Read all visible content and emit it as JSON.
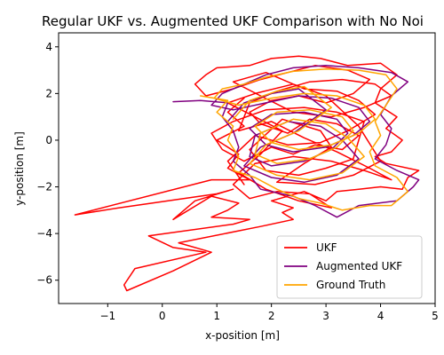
{
  "chart_data": {
    "type": "line",
    "title": "Regular UKF vs. Augmented UKF Comparison with No Noi",
    "xlabel": "x-position [m]",
    "ylabel": "y-position [m]",
    "xlim": [
      -1.9,
      5.0
    ],
    "ylim": [
      -7.0,
      4.6
    ],
    "xticks": [
      -1,
      0,
      1,
      2,
      3,
      4,
      5
    ],
    "yticks": [
      -6,
      -4,
      -2,
      0,
      2,
      4
    ],
    "grid": false,
    "legend_position": "lower-right",
    "series": [
      {
        "name": "UKF",
        "color": "#ff0000",
        "points": [
          [
            1.5,
            1.8
          ],
          [
            1.2,
            1.2
          ],
          [
            1.5,
            0.6
          ],
          [
            1.0,
            0.0
          ],
          [
            1.4,
            -0.6
          ],
          [
            1.2,
            -1.2
          ],
          [
            1.6,
            -1.7
          ],
          [
            0.9,
            -1.7
          ],
          [
            -1.6,
            -3.2
          ],
          [
            -0.8,
            -2.9
          ],
          [
            1.0,
            -2.3
          ],
          [
            1.3,
            -2.1
          ],
          [
            0.6,
            -2.6
          ],
          [
            0.2,
            -3.4
          ],
          [
            0.9,
            -2.4
          ],
          [
            1.4,
            -2.7
          ],
          [
            1.2,
            -3.0
          ],
          [
            0.9,
            -3.3
          ],
          [
            1.6,
            -3.4
          ],
          [
            1.3,
            -3.6
          ],
          [
            -0.25,
            -4.1
          ],
          [
            0.2,
            -4.6
          ],
          [
            0.8,
            -4.8
          ],
          [
            -0.5,
            -5.5
          ],
          [
            -0.7,
            -6.2
          ],
          [
            -0.65,
            -6.45
          ],
          [
            0.2,
            -5.6
          ],
          [
            0.9,
            -4.8
          ],
          [
            0.3,
            -4.4
          ],
          [
            1.8,
            -3.7
          ],
          [
            2.4,
            -3.4
          ],
          [
            2.2,
            -3.1
          ],
          [
            2.4,
            -2.9
          ],
          [
            2.0,
            -2.6
          ],
          [
            2.6,
            -2.2
          ],
          [
            3.0,
            -2.6
          ],
          [
            3.2,
            -2.2
          ],
          [
            3.6,
            -2.1
          ],
          [
            4.0,
            -2.0
          ],
          [
            4.4,
            -2.1
          ],
          [
            4.5,
            -1.6
          ],
          [
            4.7,
            -1.3
          ],
          [
            4.1,
            -1.0
          ],
          [
            3.9,
            -0.7
          ],
          [
            4.2,
            -0.5
          ],
          [
            4.4,
            0.0
          ],
          [
            4.1,
            0.5
          ],
          [
            4.3,
            1.0
          ],
          [
            3.9,
            1.6
          ],
          [
            4.0,
            2.2
          ],
          [
            4.3,
            2.8
          ],
          [
            4.0,
            3.3
          ],
          [
            3.4,
            3.2
          ],
          [
            2.9,
            3.5
          ],
          [
            2.5,
            3.6
          ],
          [
            2.0,
            3.5
          ],
          [
            1.6,
            3.2
          ],
          [
            1.0,
            3.1
          ],
          [
            0.8,
            2.8
          ],
          [
            0.6,
            2.4
          ],
          [
            0.8,
            1.9
          ],
          [
            1.3,
            2.2
          ],
          [
            1.8,
            2.6
          ],
          [
            2.3,
            2.9
          ],
          [
            2.8,
            3.2
          ],
          [
            3.4,
            3.0
          ],
          [
            3.8,
            2.6
          ],
          [
            3.5,
            2.0
          ],
          [
            3.0,
            1.6
          ],
          [
            2.5,
            1.9
          ],
          [
            2.0,
            1.7
          ],
          [
            1.6,
            1.2
          ],
          [
            1.8,
            0.7
          ],
          [
            2.3,
            0.3
          ],
          [
            2.7,
            0.9
          ],
          [
            3.2,
            0.7
          ],
          [
            3.6,
            0.2
          ],
          [
            3.3,
            -0.4
          ],
          [
            2.8,
            -0.2
          ],
          [
            2.4,
            -0.6
          ],
          [
            2.0,
            -0.3
          ],
          [
            1.5,
            -0.9
          ],
          [
            1.1,
            -0.4
          ],
          [
            0.9,
            0.3
          ],
          [
            1.3,
            0.8
          ],
          [
            1.9,
            1.3
          ],
          [
            2.6,
            1.4
          ],
          [
            3.2,
            1.2
          ],
          [
            3.7,
            0.8
          ],
          [
            3.5,
            -0.8
          ],
          [
            3.0,
            -1.2
          ],
          [
            2.5,
            -1.5
          ],
          [
            1.9,
            -1.3
          ],
          [
            1.6,
            -0.4
          ],
          [
            2.2,
            0.9
          ],
          [
            2.9,
            0.4
          ],
          [
            3.1,
            -0.3
          ],
          [
            2.6,
            -1.0
          ],
          [
            2.1,
            -1.8
          ],
          [
            2.8,
            -1.9
          ],
          [
            3.5,
            -1.5
          ],
          [
            4.0,
            -0.9
          ],
          [
            3.6,
            0.6
          ],
          [
            3.0,
            1.9
          ],
          [
            2.4,
            2.4
          ],
          [
            1.7,
            2.0
          ],
          [
            1.2,
            1.6
          ],
          [
            1.7,
            1.0
          ],
          [
            2.2,
            0.4
          ],
          [
            1.8,
            -0.6
          ],
          [
            1.4,
            -1.4
          ],
          [
            1.9,
            -2.1
          ],
          [
            2.5,
            -2.6
          ],
          [
            3.1,
            -2.9
          ],
          [
            2.7,
            -2.3
          ],
          [
            2.1,
            -2.2
          ],
          [
            1.6,
            -2.5
          ],
          [
            1.3,
            -1.9
          ],
          [
            1.7,
            -1.0
          ],
          [
            2.4,
            -0.7
          ],
          [
            3.1,
            -0.9
          ],
          [
            3.7,
            -1.3
          ],
          [
            4.2,
            -1.7
          ],
          [
            3.8,
            -1.2
          ],
          [
            3.2,
            -0.5
          ],
          [
            2.6,
            0.1
          ],
          [
            2.0,
            0.8
          ],
          [
            1.4,
            0.4
          ],
          [
            1.6,
            1.6
          ],
          [
            2.1,
            2.1
          ],
          [
            2.7,
            2.5
          ],
          [
            3.3,
            2.6
          ],
          [
            3.9,
            2.4
          ],
          [
            4.2,
            1.9
          ],
          [
            3.7,
            1.4
          ],
          [
            3.1,
            1.0
          ],
          [
            2.4,
            1.2
          ],
          [
            1.8,
            1.9
          ],
          [
            1.3,
            2.5
          ],
          [
            1.9,
            2.9
          ],
          [
            2.6,
            2.2
          ],
          [
            3.2,
            2.1
          ],
          [
            3.6,
            1.7
          ],
          [
            3.9,
            1.1
          ],
          [
            3.4,
            0.4
          ],
          [
            2.9,
            -0.1
          ],
          [
            2.3,
            -0.2
          ],
          [
            1.7,
            0.2
          ],
          [
            1.2,
            -0.9
          ],
          [
            1.5,
            -1.9
          ]
        ]
      },
      {
        "name": "Augmented UKF",
        "color": "#800080",
        "points": [
          [
            0.2,
            1.65
          ],
          [
            0.7,
            1.7
          ],
          [
            1.2,
            1.6
          ],
          [
            1.1,
            1.0
          ],
          [
            1.3,
            0.4
          ],
          [
            1.4,
            -0.3
          ],
          [
            1.3,
            -0.9
          ],
          [
            1.6,
            -1.5
          ],
          [
            1.8,
            -2.1
          ],
          [
            2.4,
            -2.4
          ],
          [
            2.8,
            -2.8
          ],
          [
            3.2,
            -3.3
          ],
          [
            3.6,
            -2.8
          ],
          [
            4.3,
            -2.6
          ],
          [
            4.6,
            -2.0
          ],
          [
            4.7,
            -1.7
          ],
          [
            4.3,
            -1.3
          ],
          [
            3.9,
            -0.8
          ],
          [
            4.1,
            -0.2
          ],
          [
            4.2,
            0.5
          ],
          [
            4.0,
            1.1
          ],
          [
            4.2,
            1.9
          ],
          [
            4.5,
            2.5
          ],
          [
            4.2,
            2.9
          ],
          [
            3.6,
            3.1
          ],
          [
            3.0,
            3.2
          ],
          [
            2.4,
            3.1
          ],
          [
            1.9,
            2.8
          ],
          [
            1.4,
            2.3
          ],
          [
            1.1,
            2.0
          ],
          [
            0.9,
            1.5
          ],
          [
            1.3,
            1.3
          ],
          [
            1.9,
            1.6
          ],
          [
            2.5,
            1.9
          ],
          [
            3.1,
            1.8
          ],
          [
            3.6,
            1.4
          ],
          [
            3.8,
            0.8
          ],
          [
            3.5,
            0.2
          ],
          [
            3.0,
            -0.3
          ],
          [
            2.4,
            -0.5
          ],
          [
            1.9,
            -0.2
          ],
          [
            1.6,
            0.5
          ],
          [
            2.0,
            1.1
          ],
          [
            2.6,
            1.2
          ],
          [
            3.2,
            0.9
          ],
          [
            3.4,
            0.3
          ],
          [
            3.1,
            -0.4
          ],
          [
            2.6,
            -0.9
          ],
          [
            2.0,
            -1.1
          ],
          [
            1.6,
            -0.7
          ],
          [
            1.7,
            0.2
          ],
          [
            2.3,
            0.8
          ],
          [
            2.9,
            0.6
          ],
          [
            3.3,
            0.0
          ],
          [
            3.6,
            -0.8
          ],
          [
            3.2,
            -1.5
          ],
          [
            2.6,
            -1.8
          ],
          [
            2.0,
            -1.6
          ],
          [
            1.5,
            -1.1
          ],
          [
            1.8,
            -0.3
          ],
          [
            2.4,
            0.3
          ],
          [
            3.0,
            1.3
          ],
          [
            2.5,
            2.2
          ],
          [
            2.0,
            2.0
          ],
          [
            1.5,
            1.6
          ],
          [
            1.2,
            0.8
          ]
        ]
      },
      {
        "name": "Ground Truth",
        "color": "#ffa500",
        "points": [
          [
            0.7,
            1.9
          ],
          [
            1.2,
            1.7
          ],
          [
            1.0,
            1.2
          ],
          [
            1.3,
            0.6
          ],
          [
            1.2,
            0.0
          ],
          [
            1.4,
            -0.7
          ],
          [
            1.3,
            -1.3
          ],
          [
            1.7,
            -1.6
          ],
          [
            2.1,
            -2.1
          ],
          [
            2.5,
            -2.5
          ],
          [
            2.9,
            -2.7
          ],
          [
            3.3,
            -3.0
          ],
          [
            3.8,
            -2.8
          ],
          [
            4.2,
            -2.8
          ],
          [
            4.5,
            -2.2
          ],
          [
            4.3,
            -1.6
          ],
          [
            3.9,
            -1.1
          ],
          [
            3.8,
            -0.5
          ],
          [
            4.0,
            0.2
          ],
          [
            3.9,
            0.8
          ],
          [
            4.1,
            1.5
          ],
          [
            4.3,
            2.2
          ],
          [
            4.1,
            2.8
          ],
          [
            3.6,
            3.0
          ],
          [
            3.0,
            3.05
          ],
          [
            2.4,
            2.95
          ],
          [
            1.9,
            2.7
          ],
          [
            1.5,
            2.4
          ],
          [
            1.1,
            2.2
          ],
          [
            0.95,
            1.8
          ],
          [
            1.4,
            1.5
          ],
          [
            2.0,
            1.8
          ],
          [
            2.6,
            2.0
          ],
          [
            3.2,
            1.9
          ],
          [
            3.7,
            1.5
          ],
          [
            3.9,
            0.9
          ],
          [
            3.6,
            0.3
          ],
          [
            3.1,
            -0.2
          ],
          [
            2.5,
            -0.4
          ],
          [
            2.0,
            -0.1
          ],
          [
            1.7,
            0.6
          ],
          [
            2.1,
            1.2
          ],
          [
            2.7,
            1.3
          ],
          [
            3.3,
            1.0
          ],
          [
            3.5,
            0.4
          ],
          [
            3.2,
            -0.3
          ],
          [
            2.7,
            -0.8
          ],
          [
            2.1,
            -1.0
          ],
          [
            1.7,
            -0.6
          ],
          [
            1.8,
            0.3
          ],
          [
            2.4,
            0.9
          ],
          [
            3.0,
            0.7
          ],
          [
            3.4,
            0.1
          ],
          [
            3.7,
            -0.7
          ],
          [
            3.3,
            -1.4
          ],
          [
            2.7,
            -1.7
          ],
          [
            2.1,
            -1.5
          ],
          [
            1.6,
            -1.0
          ],
          [
            1.9,
            -0.2
          ],
          [
            2.5,
            0.4
          ],
          [
            3.1,
            1.4
          ],
          [
            2.6,
            2.3
          ],
          [
            2.1,
            2.1
          ],
          [
            1.6,
            1.7
          ],
          [
            1.3,
            0.9
          ]
        ]
      }
    ]
  }
}
